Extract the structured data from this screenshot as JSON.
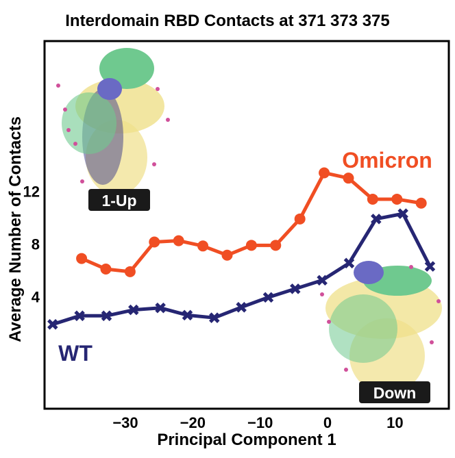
{
  "chart_data": {
    "type": "line",
    "title": "Interdomain RBD Contacts at 371 373 375",
    "xlabel": "Principal Component 1",
    "ylabel": "Average Number of Contacts",
    "xlim": [
      -42,
      18
    ],
    "ylim": [
      -4.5,
      23.4
    ],
    "xticks": [
      -30,
      -20,
      -10,
      0,
      10
    ],
    "xtick_labels": [
      "−30",
      "−20",
      "−10",
      "0",
      "10"
    ],
    "yticks": [
      4,
      8,
      12
    ],
    "ytick_labels": [
      "4",
      "8",
      "12"
    ],
    "grid": false,
    "series": [
      {
        "name": "Omicron",
        "color": "#f04e23",
        "marker": "circle",
        "x": [
          -36.5,
          -32.9,
          -29.3,
          -25.7,
          -22.1,
          -18.5,
          -14.9,
          -11.3,
          -7.7,
          -4.1,
          -0.5,
          3.1,
          6.7,
          10.3,
          13.9
        ],
        "y": [
          6.9,
          6.1,
          5.9,
          8.15,
          8.25,
          7.85,
          7.15,
          7.9,
          7.9,
          9.9,
          13.4,
          13.0,
          11.4,
          11.4,
          11.1
        ]
      },
      {
        "name": "WT",
        "color": "#262673",
        "marker": "x",
        "x": [
          -40.8,
          -36.8,
          -32.8,
          -28.8,
          -24.8,
          -20.8,
          -16.8,
          -12.8,
          -8.8,
          -4.8,
          -0.8,
          3.2,
          7.2,
          11.2,
          15.2
        ],
        "y": [
          1.9,
          2.55,
          2.55,
          3.0,
          3.15,
          2.6,
          2.4,
          3.2,
          3.95,
          4.6,
          5.25,
          6.55,
          9.9,
          10.3,
          6.3
        ]
      }
    ],
    "annotations": {
      "up_label": "1-Up",
      "down_label": "Down"
    },
    "colors": {
      "axis": "#000000",
      "label_box": "#1a1a1a",
      "protein_green": "#6fc98f",
      "protein_purple": "#6a6ac4",
      "protein_yellow": "#efe08a",
      "glycan_pink": "#d0509a"
    }
  }
}
